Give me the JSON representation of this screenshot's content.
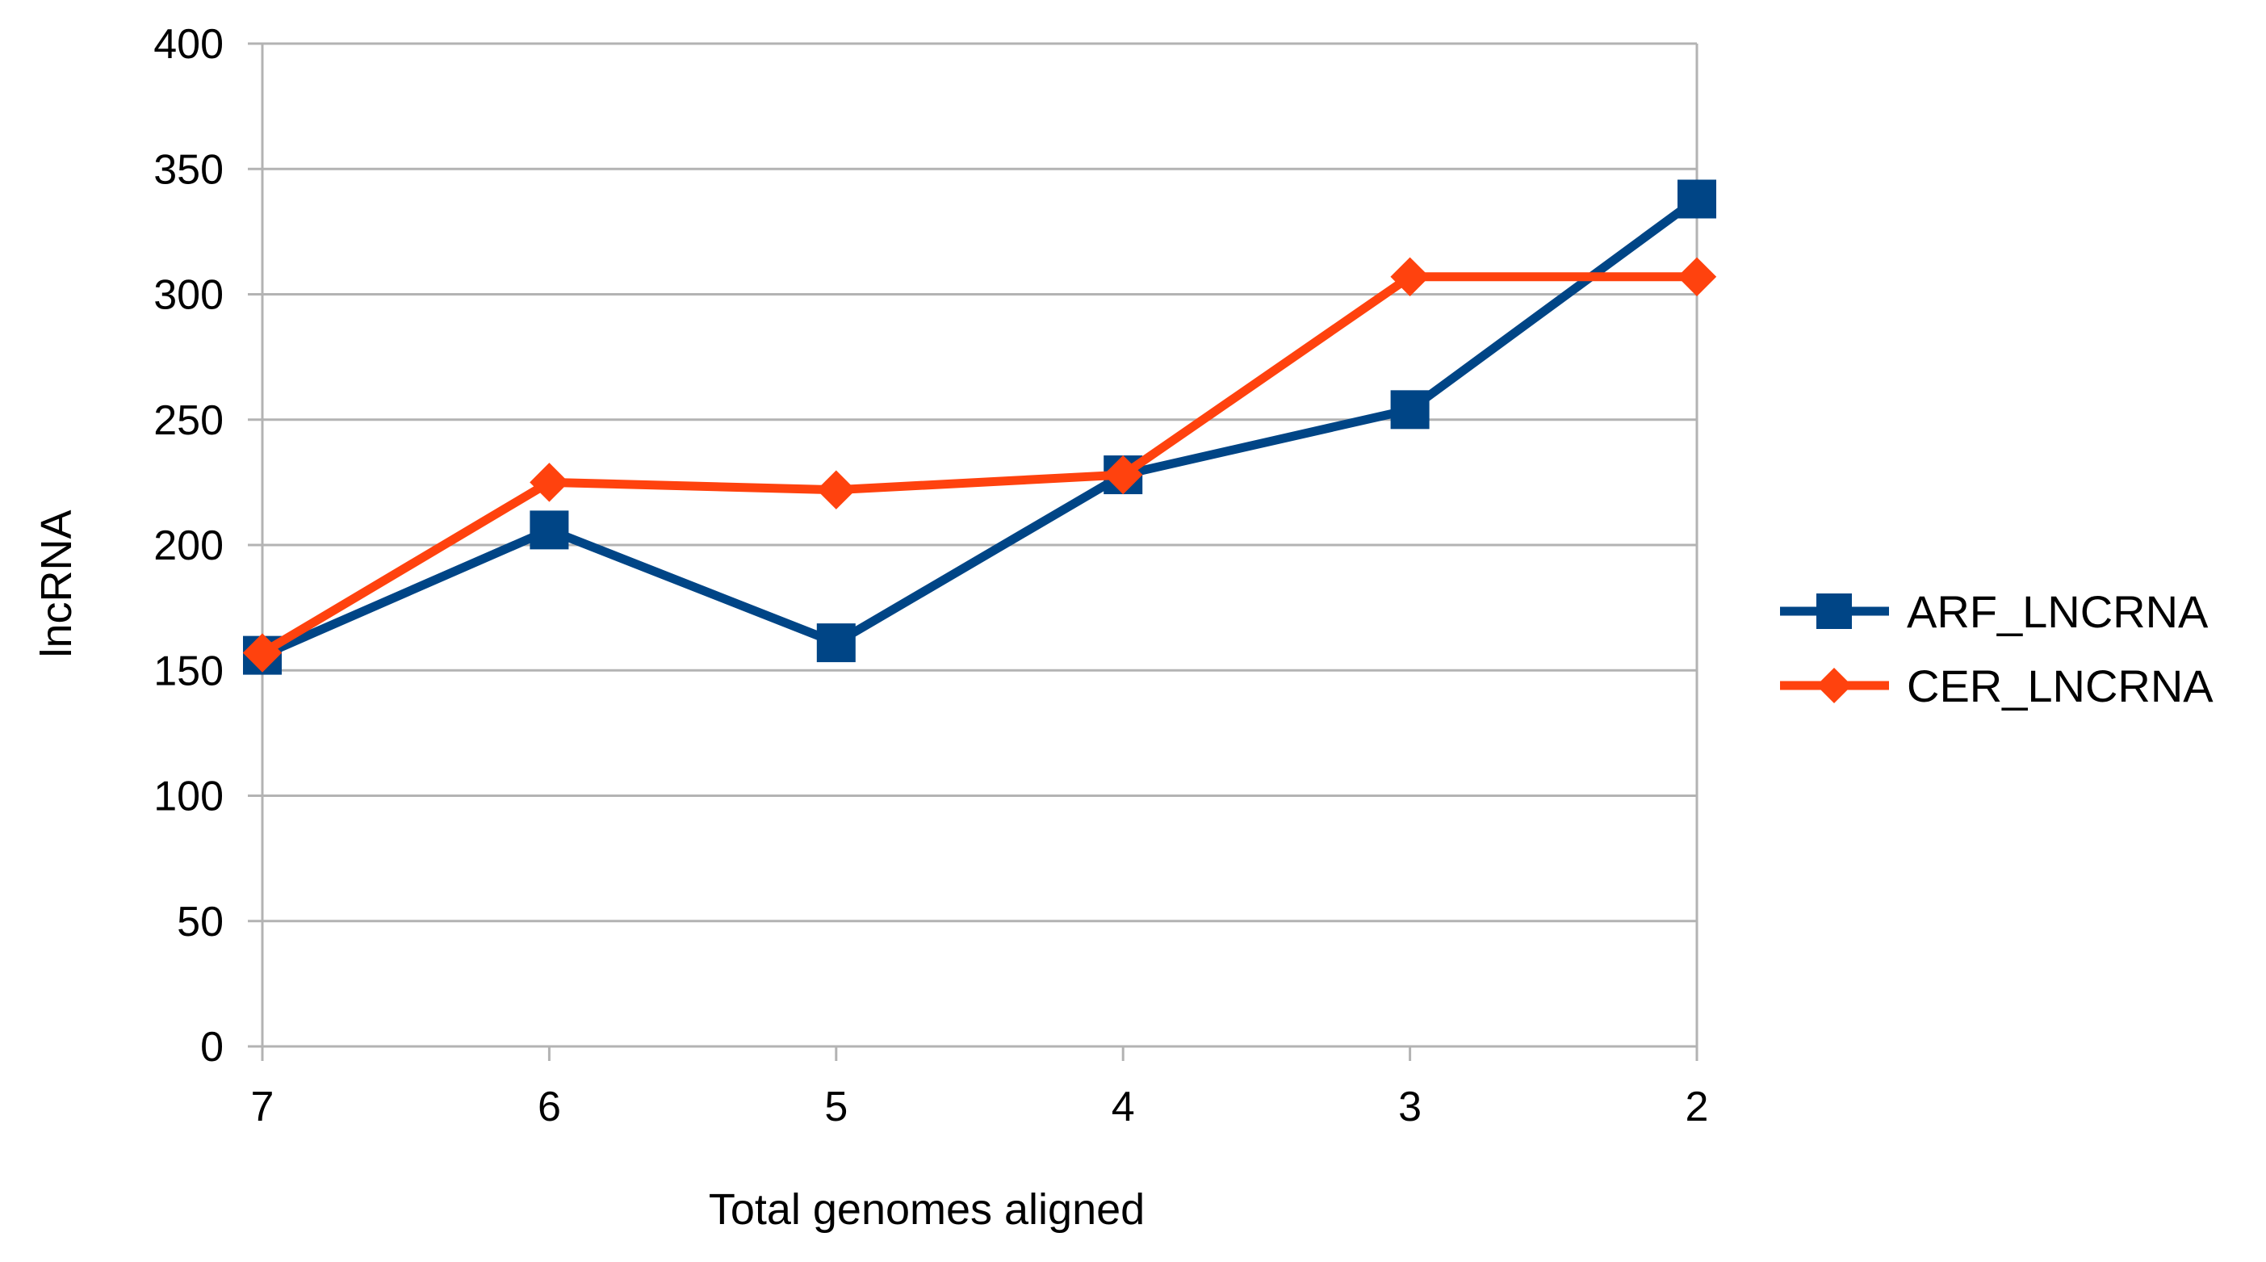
{
  "chart_data": {
    "type": "line",
    "categories": [
      "7",
      "6",
      "5",
      "4",
      "3",
      "2"
    ],
    "series": [
      {
        "name": "ARF_LNCRNA",
        "values": [
          156,
          206,
          161,
          228,
          254,
          338
        ],
        "color": "#004586",
        "marker": "square"
      },
      {
        "name": "CER_LNCRNA",
        "values": [
          157,
          225,
          222,
          228,
          307,
          307
        ],
        "color": "#ff420e",
        "marker": "diamond"
      }
    ],
    "xlabel": "Total genomes aligned",
    "ylabel": "lncRNA",
    "ylim": [
      0,
      400
    ],
    "yticks": [
      0,
      50,
      100,
      150,
      200,
      250,
      300,
      350,
      400
    ],
    "grid": "horizontal",
    "legend_position": "right"
  }
}
